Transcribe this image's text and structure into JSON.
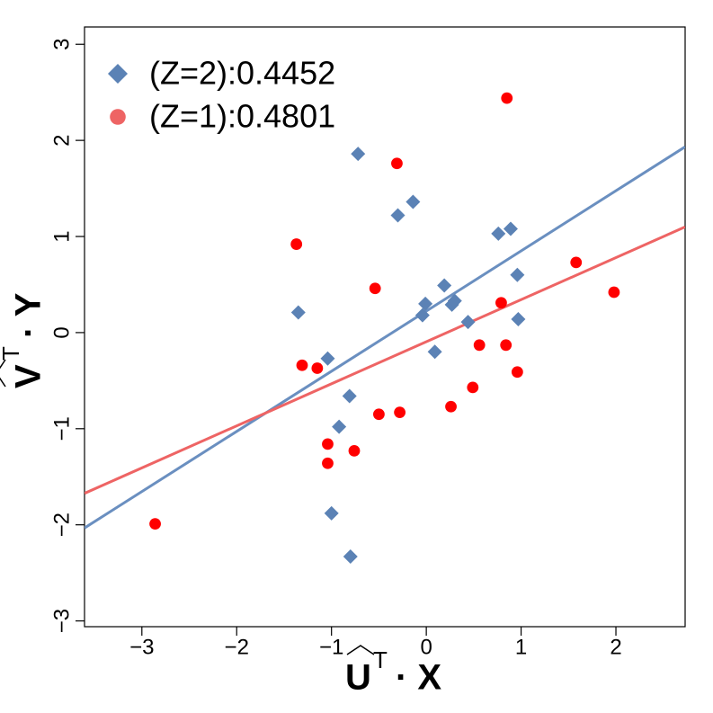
{
  "chart_data": {
    "type": "scatter",
    "x_label": {
      "base": "U",
      "superscript": "T",
      "rest": "· X"
    },
    "y_label": {
      "base": "V",
      "superscript": "T",
      "rest": "· Y"
    },
    "xlim": [
      -3.605,
      2.73
    ],
    "ylim": [
      -3.06,
      3.18
    ],
    "xticks": [
      {
        "value": -3,
        "label": "−3"
      },
      {
        "value": -2,
        "label": "−2"
      },
      {
        "value": -1,
        "label": "−1"
      },
      0,
      1,
      2
    ],
    "yticks": [
      {
        "value": -3,
        "label": "−3"
      },
      {
        "value": -2,
        "label": "−2"
      },
      {
        "value": -1,
        "label": "−1"
      },
      0,
      1,
      2,
      3
    ],
    "legend": "upper left",
    "series": [
      {
        "name": "(Z=2):0.4452",
        "color": "#5b82b5",
        "line_color": "#6a8fc0",
        "marker": "diamond",
        "slope": 0.626,
        "intercept": 0.224,
        "x": [
          -1.35,
          -0.72,
          -0.3,
          -0.14,
          -1.04,
          -0.81,
          -0.92,
          -1.0,
          -0.8,
          -0.04,
          -0.01,
          0.19,
          0.27,
          0.3,
          0.09,
          0.44,
          0.76,
          0.89,
          0.96,
          0.97
        ],
        "values": [
          0.21,
          1.86,
          1.22,
          1.36,
          -0.27,
          -0.66,
          -0.98,
          -1.88,
          -2.33,
          0.18,
          0.3,
          0.49,
          0.29,
          0.33,
          -0.2,
          0.11,
          1.03,
          1.08,
          0.6,
          0.14
        ]
      },
      {
        "name": "(Z=1):0.4801",
        "color": "#ff0000",
        "line_color": "#ee6464",
        "marker": "circle",
        "slope": 0.4376,
        "intercept": -0.095,
        "x": [
          -2.86,
          -1.37,
          -1.31,
          -1.15,
          -1.04,
          -1.04,
          -0.76,
          -0.54,
          -0.5,
          -0.31,
          -0.28,
          0.26,
          0.49,
          0.56,
          0.79,
          0.84,
          0.85,
          0.96,
          1.58,
          1.98
        ],
        "values": [
          -1.99,
          0.92,
          -0.34,
          -0.37,
          -1.16,
          -1.36,
          -1.23,
          0.46,
          -0.85,
          1.76,
          -0.83,
          -0.77,
          -0.57,
          -0.13,
          0.31,
          -0.13,
          2.44,
          -0.41,
          0.73,
          0.42
        ]
      }
    ]
  }
}
